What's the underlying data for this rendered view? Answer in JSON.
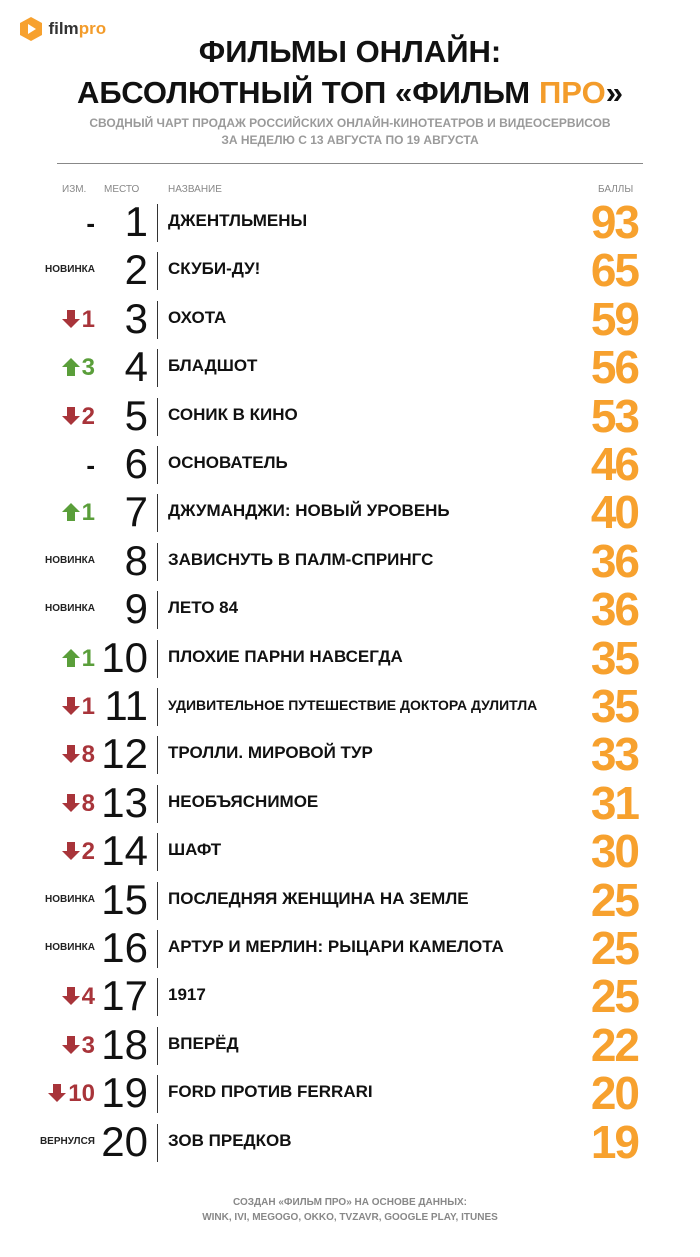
{
  "logo": {
    "part1": "film",
    "part2": "pro"
  },
  "header": {
    "title_line1": "ФИЛЬМЫ ОНЛАЙН:",
    "title_line2": [
      "АБСОЛЮТНЫЙ ТОП «ФИЛЬМ",
      "ПРО",
      "»"
    ],
    "subtitle_line1": "СВОДНЫЙ ЧАРТ ПРОДАЖ РОССИЙСКИХ ОНЛАЙН-КИНОТЕАТРОВ И ВИДЕОСЕРВИСОВ",
    "subtitle_line2": "ЗА НЕДЕЛЮ С 13 АВГУСТА ПО 19 АВГУСТА"
  },
  "table": {
    "columns": [
      "ИЗМ.",
      "МЕСТО",
      "НАЗВАНИЕ",
      "БАЛЛЫ"
    ],
    "rows": [
      {
        "change": {
          "text": "-"
        },
        "rank": 1,
        "title": "ДЖЕНТЛЬМЕНЫ",
        "score": 93
      },
      {
        "change": {
          "text": "НОВИНКА"
        },
        "rank": 2,
        "title": "СКУБИ-ДУ!",
        "score": 65
      },
      {
        "change": {
          "dir": "down",
          "text": "1"
        },
        "rank": 3,
        "title": "ОХОТА",
        "score": 59
      },
      {
        "change": {
          "dir": "up",
          "text": "3"
        },
        "rank": 4,
        "title": "БЛАДШОТ",
        "score": 56
      },
      {
        "change": {
          "dir": "down",
          "text": "2"
        },
        "rank": 5,
        "title": "СОНИК В КИНО",
        "score": 53
      },
      {
        "change": {
          "text": "-"
        },
        "rank": 6,
        "title": "ОСНОВАТЕЛЬ",
        "score": 46
      },
      {
        "change": {
          "dir": "up",
          "text": "1"
        },
        "rank": 7,
        "title": "ДЖУМАНДЖИ: НОВЫЙ УРОВЕНЬ",
        "score": 40
      },
      {
        "change": {
          "text": "НОВИНКА"
        },
        "rank": 8,
        "title": "ЗАВИСНУТЬ В ПАЛМ-СПРИНГС",
        "score": 36
      },
      {
        "change": {
          "text": "НОВИНКА"
        },
        "rank": 9,
        "title": "ЛЕТО 84",
        "score": 36
      },
      {
        "change": {
          "dir": "up",
          "text": "1"
        },
        "rank": 10,
        "title": "ПЛОХИЕ ПАРНИ НАВСЕГДА",
        "score": 35
      },
      {
        "change": {
          "dir": "down",
          "text": "1"
        },
        "rank": 11,
        "title": "УДИВИТЕЛЬНОЕ ПУТЕШЕСТВИЕ ДОКТОРА ДУЛИТЛА",
        "score": 35
      },
      {
        "change": {
          "dir": "down",
          "text": "8"
        },
        "rank": 12,
        "title": "ТРОЛЛИ. МИРОВОЙ ТУР",
        "score": 33
      },
      {
        "change": {
          "dir": "down",
          "text": "8"
        },
        "rank": 13,
        "title": "НЕОБЪЯСНИМОЕ",
        "score": 31
      },
      {
        "change": {
          "dir": "down",
          "text": "2"
        },
        "rank": 14,
        "title": "ШАФТ",
        "score": 30
      },
      {
        "change": {
          "text": "НОВИНКА"
        },
        "rank": 15,
        "title": "ПОСЛЕДНЯЯ ЖЕНЩИНА НА ЗЕМЛЕ",
        "score": 25
      },
      {
        "change": {
          "text": "НОВИНКА"
        },
        "rank": 16,
        "title": "АРТУР И МЕРЛИН: РЫЦАРИ КАМЕЛОТА",
        "score": 25
      },
      {
        "change": {
          "dir": "down",
          "text": "4"
        },
        "rank": 17,
        "title": "1917",
        "score": 25
      },
      {
        "change": {
          "dir": "down",
          "text": "3"
        },
        "rank": 18,
        "title": "ВПЕРЁД",
        "score": 22
      },
      {
        "change": {
          "dir": "down",
          "text": "10"
        },
        "rank": 19,
        "title": "FORD ПРОТИВ FERRARI",
        "score": 20
      },
      {
        "change": {
          "text": "ВЕРНУЛСЯ"
        },
        "rank": 20,
        "title": "ЗОВ ПРЕДКОВ",
        "score": 19
      }
    ]
  },
  "footer": {
    "line1": "СОЗДАН «ФИЛЬМ ПРО» НА ОСНОВЕ ДАННЫХ:",
    "line2": "WINK, IVI, MEGOGO, OKKO, TVZAVR, GOOGLE PLAY, ITUNES"
  }
}
